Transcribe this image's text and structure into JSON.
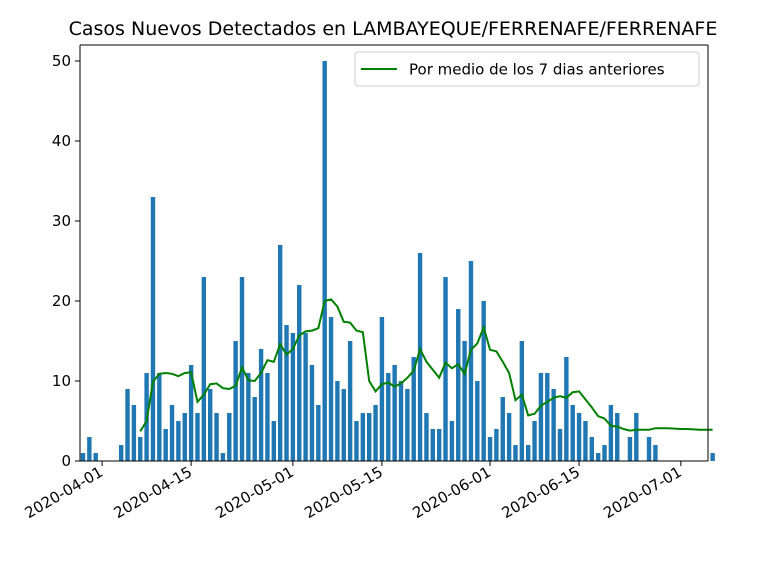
{
  "chart_data": {
    "type": "bar",
    "title": "Casos Nuevos Detectados en LAMBAYEQUE/FERRENAFE/FERRENAFE",
    "xlabel": "",
    "ylabel": "",
    "x_start": "2020-03-29",
    "ylim": [
      0,
      52
    ],
    "yticks": [
      0,
      10,
      20,
      30,
      40,
      50
    ],
    "xticks": [
      {
        "label": "2020-04-01"
      },
      {
        "label": "2020-04-15"
      },
      {
        "label": "2020-05-01"
      },
      {
        "label": "2020-05-15"
      },
      {
        "label": "2020-06-01"
      },
      {
        "label": "2020-06-15"
      },
      {
        "label": "2020-07-01"
      }
    ],
    "grid": false,
    "legend_position": "top-right",
    "bar_color": "#1f77b4",
    "line_color": "#008000",
    "series": [
      {
        "kind": "bar",
        "values": [
          1,
          3,
          1,
          0,
          0,
          0,
          2,
          9,
          7,
          3,
          11,
          33,
          11,
          4,
          7,
          5,
          6,
          12,
          6,
          23,
          9,
          6,
          1,
          6,
          15,
          23,
          11,
          8,
          14,
          11,
          5,
          27,
          17,
          16,
          22,
          16,
          12,
          7,
          50,
          18,
          10,
          9,
          15,
          5,
          6,
          6,
          7,
          18,
          11,
          12,
          10,
          9,
          13,
          26,
          6,
          4,
          4,
          23,
          5,
          19,
          15,
          25,
          10,
          20,
          3,
          4,
          8,
          6,
          2,
          15,
          2,
          5,
          11,
          11,
          9,
          4,
          13,
          7,
          6,
          5,
          3,
          1,
          2,
          7,
          6,
          0,
          3,
          6,
          0,
          3,
          2,
          0,
          0,
          0,
          0,
          0,
          0,
          0,
          0,
          1
        ]
      },
      {
        "kind": "line",
        "name": "Por medio de los 7 dias anteriores",
        "values": [
          null,
          null,
          null,
          null,
          null,
          null,
          null,
          null,
          null,
          3.7,
          5.0,
          9.9,
          10.9,
          11.0,
          10.9,
          10.6,
          11.0,
          11.1,
          7.4,
          8.3,
          9.6,
          9.7,
          9.1,
          9.0,
          9.4,
          11.7,
          10.1,
          10.0,
          11.0,
          12.6,
          12.4,
          14.6,
          13.3,
          14.0,
          15.7,
          16.2,
          16.3,
          16.6,
          20.0,
          20.2,
          19.3,
          17.4,
          17.3,
          16.3,
          16.1,
          10.0,
          8.7,
          9.6,
          9.8,
          9.3,
          9.7,
          10.4,
          11.3,
          14.0,
          12.4,
          11.4,
          10.4,
          12.3,
          11.6,
          12.1,
          10.9,
          13.9,
          14.7,
          16.7,
          13.9,
          13.7,
          12.4,
          11.0,
          7.6,
          8.3,
          5.7,
          5.9,
          6.9,
          7.4,
          7.9,
          8.1,
          7.9,
          8.6,
          8.7,
          7.7,
          6.7,
          5.6,
          5.3,
          4.4,
          4.3,
          4.0,
          3.8,
          3.9,
          3.9,
          3.9,
          4.1,
          4.1,
          4.1,
          4.05,
          4.0,
          4.0,
          3.95,
          3.9,
          3.9,
          3.9
        ]
      }
    ]
  }
}
